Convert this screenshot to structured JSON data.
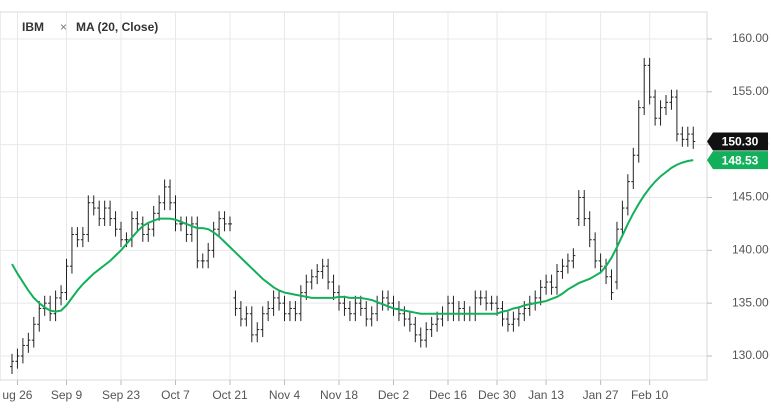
{
  "chart_data": {
    "type": "ohlc",
    "legend": {
      "symbol": "IBM"
    },
    "categories": [
      null,
      "ug 26",
      null,
      null,
      null,
      null,
      null,
      null,
      null,
      null,
      "Sep 9",
      null,
      null,
      null,
      null,
      null,
      null,
      null,
      null,
      null,
      "Sep 23",
      null,
      null,
      null,
      null,
      null,
      null,
      null,
      null,
      null,
      "Oct 7",
      null,
      null,
      null,
      null,
      null,
      null,
      null,
      null,
      null,
      "Oct 21",
      null,
      null,
      null,
      null,
      null,
      null,
      null,
      null,
      null,
      "Nov 4",
      null,
      null,
      null,
      null,
      null,
      null,
      null,
      null,
      null,
      "Nov 18",
      null,
      null,
      null,
      null,
      null,
      null,
      null,
      null,
      null,
      "Dec 2",
      null,
      null,
      null,
      null,
      null,
      null,
      null,
      null,
      null,
      "Dec 16",
      null,
      null,
      null,
      null,
      null,
      null,
      null,
      null,
      "Dec 30",
      null,
      null,
      null,
      null,
      null,
      null,
      null,
      null,
      "Jan 13",
      null,
      null,
      null,
      null,
      null,
      null,
      null,
      null,
      null,
      "Jan 27",
      null,
      null,
      null,
      null,
      null,
      null,
      null,
      null,
      "Feb 10",
      null,
      null,
      null,
      null,
      null,
      null,
      null,
      null
    ],
    "series": [
      {
        "name": "IBM",
        "kind": "ohlc",
        "color": "#222222",
        "last_label": "150.30",
        "open": [
          129,
          129.5,
          130,
          131,
          131.5,
          133,
          134.5,
          135,
          134,
          135.5,
          136,
          138.5,
          141.5,
          141,
          141.5,
          144.5,
          144,
          143,
          144,
          143,
          142,
          141,
          141,
          143,
          142.5,
          141.5,
          142,
          143.5,
          144.5,
          146,
          144.5,
          142.5,
          142.5,
          141.5,
          142.5,
          139,
          139,
          140,
          142,
          143,
          142.5,
          135.5,
          134.5,
          133.5,
          134,
          132,
          132.5,
          134,
          134.5,
          135.5,
          135,
          134,
          134.5,
          134,
          136,
          137,
          137.5,
          138,
          138.5,
          137,
          136,
          135,
          134.5,
          134,
          135,
          134.5,
          133.5,
          134,
          135,
          135.5,
          135,
          134.5,
          134,
          133.5,
          133,
          132,
          131.5,
          132.5,
          133,
          133.5,
          134,
          135,
          134,
          134.5,
          134,
          134,
          135.5,
          135.5,
          135,
          135,
          134.5,
          133.5,
          133,
          133.5,
          134,
          134.5,
          135,
          135.5,
          136.5,
          137,
          136.5,
          138,
          138.5,
          139,
          143,
          145,
          143,
          141,
          139,
          138.5,
          137.5,
          137,
          142,
          144,
          146.5,
          149,
          153.5,
          157.5,
          154.5,
          152.5,
          153.5,
          154,
          154.5,
          151,
          150.5,
          151
        ],
        "high": [
          130.2,
          130.7,
          131.7,
          132.2,
          133.7,
          135.2,
          135.7,
          135.7,
          136.2,
          136.7,
          139.2,
          142.2,
          142.2,
          142.2,
          145.2,
          145.2,
          144.7,
          144.7,
          144.7,
          143.7,
          142.7,
          141.7,
          143.7,
          143.7,
          143.2,
          142.7,
          144.2,
          145.2,
          146.7,
          146.7,
          145.2,
          143.2,
          143.2,
          143.2,
          143.2,
          139.7,
          140.7,
          142.7,
          143.7,
          143.7,
          143.2,
          136.2,
          135.2,
          134.7,
          134.7,
          133.2,
          134.7,
          135.2,
          136.2,
          136.2,
          135.7,
          135.2,
          135.2,
          136.7,
          137.7,
          138.2,
          138.7,
          139.2,
          139.2,
          137.7,
          136.7,
          135.7,
          135.2,
          135.7,
          135.7,
          135.2,
          134.7,
          135.7,
          136.2,
          136.2,
          135.7,
          135.2,
          134.7,
          134.2,
          133.7,
          132.7,
          133.2,
          133.7,
          134.2,
          134.7,
          135.7,
          135.7,
          135.2,
          135.2,
          134.7,
          136.2,
          136.2,
          136.2,
          135.7,
          135.7,
          135.2,
          134.2,
          134.2,
          134.7,
          135.2,
          135.7,
          136.2,
          137.2,
          137.7,
          137.7,
          138.7,
          139.2,
          139.7,
          140.2,
          145.7,
          145.7,
          143.7,
          141.7,
          139.7,
          139.2,
          138.2,
          142.7,
          144.7,
          147.2,
          149.7,
          154.2,
          158.2,
          158.2,
          155.2,
          154.2,
          154.7,
          155.2,
          155.2,
          151.7,
          151.7,
          151.7
        ],
        "low": [
          128.3,
          128.8,
          129.3,
          130.3,
          130.8,
          132.3,
          133.8,
          133.3,
          133.3,
          134.8,
          135.3,
          137.8,
          140.3,
          140.3,
          140.8,
          143.3,
          142.3,
          142.3,
          142.3,
          141.3,
          140.3,
          140.3,
          140.3,
          141.8,
          140.8,
          140.8,
          141.3,
          142.8,
          143.8,
          143.8,
          141.8,
          141.8,
          140.8,
          140.8,
          138.3,
          138.3,
          138.3,
          139.3,
          141.3,
          141.8,
          141.8,
          133.8,
          132.8,
          132.8,
          131.3,
          131.3,
          131.8,
          133.3,
          133.8,
          134.3,
          133.3,
          133.3,
          133.3,
          133.3,
          135.3,
          136.3,
          136.8,
          137.3,
          136.3,
          135.3,
          134.3,
          133.8,
          133.3,
          133.3,
          133.8,
          132.8,
          132.8,
          133.3,
          134.3,
          134.3,
          133.8,
          133.3,
          132.8,
          132.3,
          131.3,
          130.8,
          130.8,
          131.8,
          132.3,
          132.8,
          133.3,
          133.3,
          133.3,
          133.3,
          133.3,
          133.3,
          134.8,
          134.3,
          134.3,
          133.8,
          132.8,
          132.3,
          132.3,
          132.8,
          133.3,
          133.8,
          134.3,
          134.8,
          135.8,
          135.8,
          135.8,
          137.3,
          137.8,
          138.3,
          142.3,
          142.3,
          140.3,
          138.3,
          137.8,
          136.8,
          135.3,
          136.3,
          141.3,
          143.3,
          145.8,
          148.3,
          152.8,
          153.8,
          151.8,
          151.8,
          152.8,
          153.3,
          150.3,
          149.8,
          149.8,
          149.6
        ],
        "close": [
          129.5,
          130,
          131,
          131.5,
          133,
          134.5,
          135,
          134,
          135.5,
          136,
          138.5,
          141.5,
          141,
          141.5,
          144.5,
          144,
          143,
          144,
          143,
          142,
          141,
          141,
          143,
          142.5,
          141.5,
          142,
          143.5,
          144.5,
          146,
          144.5,
          142.5,
          142.5,
          141.5,
          142.5,
          139,
          139,
          140,
          142,
          143,
          142.5,
          142.5,
          134.5,
          133.5,
          134,
          132,
          132.5,
          134,
          134.5,
          135.5,
          135,
          134,
          134.5,
          134,
          136,
          137,
          137.5,
          138,
          138.5,
          137,
          136,
          135,
          134.5,
          134,
          135,
          134.5,
          133.5,
          134,
          135,
          135.5,
          135,
          134.5,
          134,
          133.5,
          133,
          132,
          131.5,
          132.5,
          133,
          133.5,
          134,
          135,
          134,
          134.5,
          134,
          134,
          135.5,
          135.5,
          135,
          135,
          134.5,
          133.5,
          133,
          133.5,
          134,
          134.5,
          135,
          135.5,
          136.5,
          137,
          136.5,
          138,
          138.5,
          139,
          139.5,
          145,
          143,
          141,
          139,
          138.5,
          137.5,
          136,
          142,
          144,
          146.5,
          149,
          153.5,
          157.5,
          154.5,
          152.5,
          153.5,
          154,
          154.5,
          151,
          150.5,
          151,
          150.3
        ]
      },
      {
        "name": "MA (20, Close)",
        "kind": "line",
        "color": "#12b05a",
        "last_label": "148.53",
        "values": [
          138.7,
          137.8,
          137,
          136.2,
          135.5,
          135,
          134.6,
          134.3,
          134.2,
          134.3,
          134.8,
          135.5,
          136.2,
          136.8,
          137.3,
          137.8,
          138.2,
          138.6,
          139,
          139.5,
          140,
          140.6,
          141.2,
          141.8,
          142.3,
          142.6,
          142.8,
          143,
          143,
          143,
          142.9,
          142.7,
          142.5,
          142.3,
          142.1,
          142.1,
          142,
          141.7,
          141.3,
          140.8,
          140.3,
          139.8,
          139.3,
          138.8,
          138.3,
          137.8,
          137.3,
          136.9,
          136.5,
          136.2,
          136,
          135.9,
          135.8,
          135.7,
          135.6,
          135.5,
          135.5,
          135.5,
          135.5,
          135.5,
          135.6,
          135.6,
          135.5,
          135.5,
          135.5,
          135.4,
          135.3,
          135.1,
          134.9,
          134.7,
          134.5,
          134.4,
          134.3,
          134.2,
          134.1,
          134,
          134,
          134,
          134,
          134,
          134,
          134,
          134,
          134,
          134,
          134,
          134,
          134,
          134,
          134,
          134.2,
          134.3,
          134.5,
          134.6,
          134.8,
          134.9,
          135,
          135.1,
          135.2,
          135.4,
          135.6,
          135.9,
          136.3,
          136.6,
          136.9,
          137.1,
          137.3,
          137.6,
          137.9,
          138.5,
          139.3,
          140.3,
          141.4,
          142.5,
          143.5,
          144.4,
          145.2,
          145.9,
          146.5,
          147,
          147.4,
          147.8,
          148.1,
          148.3,
          148.45,
          148.53
        ]
      }
    ],
    "ylim": [
      127.73,
      162.55
    ],
    "yticks": [
      {
        "value": 130,
        "label": "130.00"
      },
      {
        "value": 135,
        "label": "135.00"
      },
      {
        "value": 140,
        "label": "140.00"
      },
      {
        "value": 145,
        "label": "145.00"
      },
      {
        "value": 150,
        "label": "150.00"
      },
      {
        "value": 155,
        "label": "155.00"
      },
      {
        "value": 160,
        "label": "160.00"
      }
    ],
    "grid": true
  }
}
